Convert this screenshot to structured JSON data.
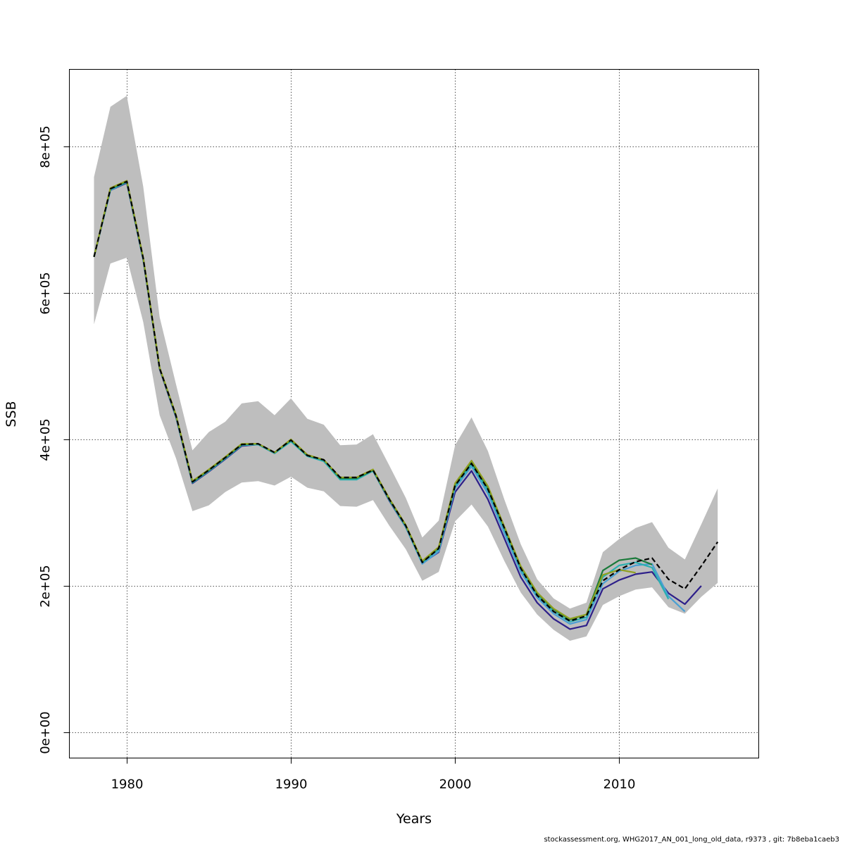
{
  "chart_data": {
    "type": "line",
    "title": "",
    "xlabel": "Years",
    "ylabel": "SSB",
    "xlim": [
      1976.5,
      2018.5
    ],
    "ylim": [
      -35000,
      905000
    ],
    "xticks": [
      1980,
      1990,
      2000,
      2010
    ],
    "xtick_labels": [
      "1980",
      "1990",
      "2000",
      "2010"
    ],
    "yticks": [
      0,
      200000,
      400000,
      600000,
      800000
    ],
    "ytick_labels": [
      "0e+00",
      "2e+05",
      "4e+05",
      "6e+05",
      "8e+05"
    ],
    "grid": true,
    "band": {
      "color": "#bebebe",
      "x": [
        1978,
        1979,
        1980,
        1981,
        1982,
        1983,
        1984,
        1985,
        1986,
        1987,
        1988,
        1989,
        1990,
        1991,
        1992,
        1993,
        1994,
        1995,
        1996,
        1997,
        1998,
        1999,
        2000,
        2001,
        2002,
        2003,
        2004,
        2005,
        2006,
        2007,
        2008,
        2009,
        2010,
        2011,
        2012,
        2013,
        2014,
        2015,
        2016
      ],
      "lower": [
        557000,
        640000,
        648000,
        560000,
        433000,
        374000,
        302000,
        310000,
        328000,
        341000,
        343000,
        337000,
        349000,
        334000,
        329000,
        309000,
        308000,
        317000,
        282000,
        250000,
        207000,
        219000,
        288000,
        311000,
        281000,
        234000,
        191000,
        161000,
        140000,
        125000,
        131000,
        174000,
        186000,
        195000,
        198000,
        171000,
        162000,
        185000,
        204000
      ],
      "upper": [
        758000,
        854000,
        869000,
        745000,
        567000,
        475000,
        385000,
        410000,
        424000,
        449000,
        452000,
        433000,
        456000,
        428000,
        420000,
        392000,
        393000,
        407000,
        364000,
        320000,
        266000,
        289000,
        392000,
        430000,
        384000,
        318000,
        257000,
        209000,
        183000,
        169000,
        177000,
        246000,
        264000,
        279000,
        287000,
        252000,
        236000,
        284000,
        333000
      ]
    },
    "series": [
      {
        "color": "#000000",
        "dashed": true,
        "x": [
          1978,
          1979,
          1980,
          1981,
          1982,
          1983,
          1984,
          1985,
          1986,
          1987,
          1988,
          1989,
          1990,
          1991,
          1992,
          1993,
          1994,
          1995,
          1996,
          1997,
          1998,
          1999,
          2000,
          2001,
          2002,
          2003,
          2004,
          2005,
          2006,
          2007,
          2008,
          2009,
          2010,
          2011,
          2012,
          2013,
          2014,
          2015,
          2016
        ],
        "y": [
          649000,
          742000,
          752000,
          647000,
          497000,
          432000,
          342000,
          358000,
          375000,
          393000,
          394000,
          382000,
          399000,
          378000,
          372000,
          348000,
          348000,
          358000,
          318000,
          282000,
          232000,
          251000,
          337000,
          367000,
          332000,
          279000,
          224000,
          187000,
          165000,
          152000,
          159000,
          207000,
          222000,
          233000,
          238000,
          209000,
          196000,
          227000,
          260000
        ]
      },
      {
        "color": "#2d1f8a",
        "dashed": false,
        "x": [
          1978,
          1979,
          1980,
          1981,
          1982,
          1983,
          1984,
          1985,
          1986,
          1987,
          1988,
          1989,
          1990,
          1991,
          1992,
          1993,
          1994,
          1995,
          1996,
          1997,
          1998,
          1999,
          2000,
          2001,
          2002,
          2003,
          2004,
          2005,
          2006,
          2007,
          2008,
          2009,
          2010,
          2011,
          2012,
          2013,
          2014,
          2015
        ],
        "y": [
          649000,
          740000,
          750000,
          645000,
          496000,
          430000,
          340000,
          356000,
          373000,
          391000,
          393000,
          381000,
          398000,
          377000,
          371000,
          346000,
          346000,
          357000,
          316000,
          280000,
          231000,
          246000,
          328000,
          357000,
          318000,
          265000,
          212000,
          177000,
          155000,
          141000,
          146000,
          196000,
          208000,
          216000,
          219000,
          190000,
          175000,
          200000
        ]
      },
      {
        "color": "#4a9fd4",
        "dashed": false,
        "x": [
          1978,
          1979,
          1980,
          1981,
          1982,
          1983,
          1984,
          1985,
          1986,
          1987,
          1988,
          1989,
          1990,
          1991,
          1992,
          1993,
          1994,
          1995,
          1996,
          1997,
          1998,
          1999,
          2000,
          2001,
          2002,
          2003,
          2004,
          2005,
          2006,
          2007,
          2008,
          2009,
          2010,
          2011,
          2012,
          2013,
          2014
        ],
        "y": [
          649000,
          740000,
          751000,
          646000,
          497000,
          431000,
          341000,
          357000,
          374000,
          392000,
          393000,
          381000,
          398000,
          377000,
          371000,
          346000,
          346000,
          357000,
          317000,
          280000,
          230000,
          247000,
          333000,
          363000,
          326000,
          272000,
          219000,
          184000,
          162000,
          148000,
          154000,
          203000,
          220000,
          228000,
          230000,
          186000,
          165000
        ]
      },
      {
        "color": "#2ab0b0",
        "dashed": false,
        "x": [
          1978,
          1979,
          1980,
          1981,
          1982,
          1983,
          1984,
          1985,
          1986,
          1987,
          1988,
          1989,
          1990,
          1991,
          1992,
          1993,
          1994,
          1995,
          1996,
          1997,
          1998,
          1999,
          2000,
          2001,
          2002,
          2003,
          2004,
          2005,
          2006,
          2007,
          2008,
          2009,
          2010,
          2011,
          2012,
          2013
        ],
        "y": [
          649000,
          741000,
          751000,
          646000,
          497000,
          431000,
          341000,
          357000,
          374000,
          392000,
          393000,
          381000,
          397000,
          377000,
          370000,
          345000,
          345000,
          357000,
          317000,
          281000,
          232000,
          250000,
          336000,
          366000,
          330000,
          277000,
          223000,
          187000,
          165000,
          151000,
          157000,
          212000,
          228000,
          232000,
          225000,
          182000
        ]
      },
      {
        "color": "#1a7a3a",
        "dashed": false,
        "x": [
          1978,
          1979,
          1980,
          1981,
          1982,
          1983,
          1984,
          1985,
          1986,
          1987,
          1988,
          1989,
          1990,
          1991,
          1992,
          1993,
          1994,
          1995,
          1996,
          1997,
          1998,
          1999,
          2000,
          2001,
          2002,
          2003,
          2004,
          2005,
          2006,
          2007,
          2008,
          2009,
          2010,
          2011,
          2012
        ],
        "y": [
          649000,
          742000,
          752000,
          647000,
          497000,
          432000,
          342000,
          358000,
          375000,
          393000,
          394000,
          382000,
          399000,
          378000,
          372000,
          347000,
          347000,
          358000,
          318000,
          282000,
          233000,
          252000,
          339000,
          369000,
          334000,
          280000,
          226000,
          190000,
          168000,
          154000,
          161000,
          221000,
          235000,
          238000,
          229000
        ]
      },
      {
        "color": "#8fa020",
        "dashed": false,
        "x": [
          1978,
          1979,
          1980,
          1981,
          1982,
          1983,
          1984,
          1985,
          1986,
          1987,
          1988,
          1989,
          1990,
          1991,
          1992,
          1993,
          1994,
          1995,
          1996,
          1997,
          1998,
          1999,
          2000,
          2001,
          2002,
          2003,
          2004,
          2005,
          2006,
          2007,
          2008,
          2009,
          2010,
          2011
        ],
        "y": [
          649000,
          743000,
          753000,
          648000,
          498000,
          433000,
          343000,
          359000,
          376000,
          394000,
          394000,
          382000,
          400000,
          379000,
          372000,
          348000,
          348000,
          359000,
          319000,
          283000,
          234000,
          253000,
          340000,
          371000,
          336000,
          281000,
          227000,
          191000,
          169000,
          155000,
          161000,
          215000,
          222000,
          218000
        ]
      }
    ]
  },
  "footer": "stockassessment.org, WHG2017_AN_001_long_old_data, r9373 , git: 7b8eba1caeb3"
}
